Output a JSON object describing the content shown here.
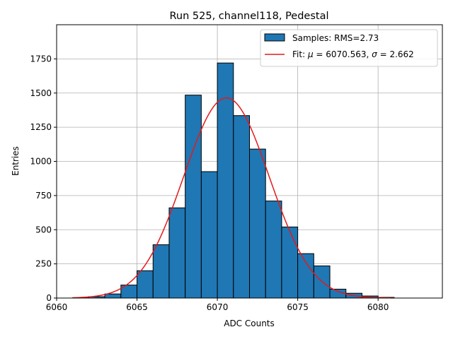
{
  "chart_data": {
    "type": "bar",
    "title": "Run 525, channel118, Pedestal",
    "xlabel": "ADC Counts",
    "ylabel": "Entries",
    "xlim": [
      6060,
      6084
    ],
    "ylim": [
      0,
      2000
    ],
    "xticks": [
      6060,
      6065,
      6070,
      6075,
      6080
    ],
    "yticks": [
      0,
      250,
      500,
      750,
      1000,
      1250,
      1500,
      1750
    ],
    "grid": true,
    "legend_position": "top-right",
    "bar_color": "#1f77b4",
    "fit_color": "#e31a1c",
    "bins": [
      {
        "x0": 6061,
        "x1": 6062,
        "count": 2
      },
      {
        "x0": 6062,
        "x1": 6063,
        "count": 10
      },
      {
        "x0": 6063,
        "x1": 6064,
        "count": 30
      },
      {
        "x0": 6064,
        "x1": 6065,
        "count": 95
      },
      {
        "x0": 6065,
        "x1": 6066,
        "count": 200
      },
      {
        "x0": 6066,
        "x1": 6067,
        "count": 390
      },
      {
        "x0": 6067,
        "x1": 6068,
        "count": 660
      },
      {
        "x0": 6068,
        "x1": 6069,
        "count": 1485
      },
      {
        "x0": 6069,
        "x1": 6070,
        "count": 925
      },
      {
        "x0": 6070,
        "x1": 6071,
        "count": 1720
      },
      {
        "x0": 6071,
        "x1": 6072,
        "count": 1335
      },
      {
        "x0": 6072,
        "x1": 6073,
        "count": 1090
      },
      {
        "x0": 6073,
        "x1": 6074,
        "count": 710
      },
      {
        "x0": 6074,
        "x1": 6075,
        "count": 520
      },
      {
        "x0": 6075,
        "x1": 6076,
        "count": 325
      },
      {
        "x0": 6076,
        "x1": 6077,
        "count": 235
      },
      {
        "x0": 6077,
        "x1": 6078,
        "count": 65
      },
      {
        "x0": 6078,
        "x1": 6079,
        "count": 35
      },
      {
        "x0": 6079,
        "x1": 6080,
        "count": 15
      },
      {
        "x0": 6080,
        "x1": 6081,
        "count": 5
      }
    ],
    "fit": {
      "mu": 6070.563,
      "sigma": 2.662,
      "amplitude": 1465,
      "x_range": [
        6061,
        6081
      ]
    },
    "legend": [
      {
        "kind": "box",
        "label": "Samples: RMS=2.73"
      },
      {
        "kind": "line",
        "label_prefix": "Fit: ",
        "label_mu": "μ",
        "label_mid": " = 6070.563, ",
        "label_sigma": "σ",
        "label_suffix": " = 2.662"
      }
    ]
  }
}
